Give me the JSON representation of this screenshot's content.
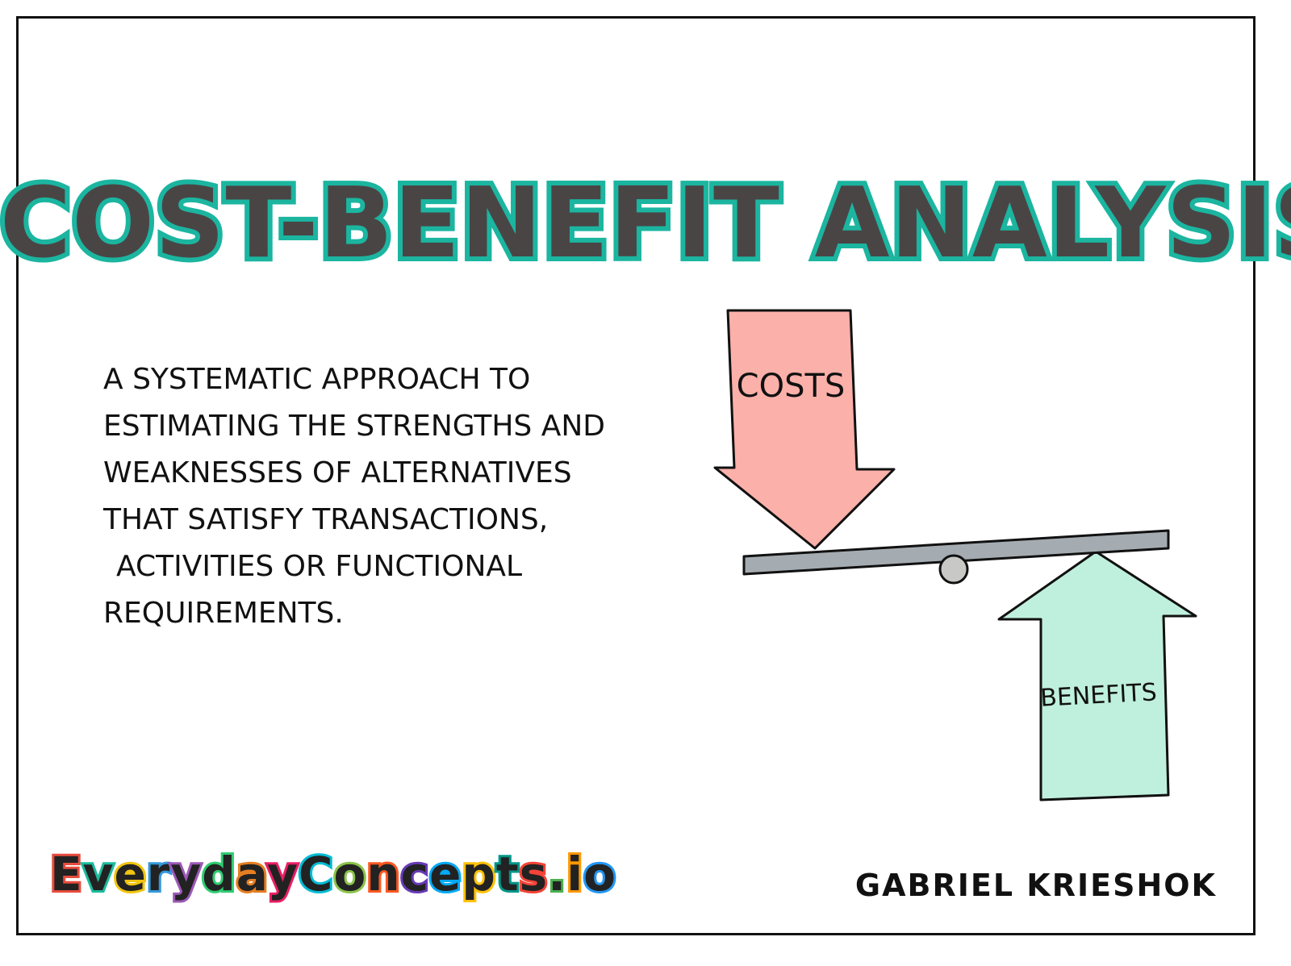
{
  "title": {
    "text": "COST-BENEFIT ANALYSIS",
    "fill_color": "#4a4545",
    "outline_color": "#1bb5a0"
  },
  "definition": {
    "lines": [
      "A systematic approach to",
      "estimating the strengths and",
      "weaknesses of alternatives",
      "that satisfy transactions,",
      "activities or functional",
      "requirements."
    ],
    "color": "#111111"
  },
  "diagram": {
    "costs_label": "COSTS",
    "benefits_label": "BENEFITS",
    "costs_color": "#fbb0a9",
    "benefits_color": "#bff0dd",
    "beam_color": "#a5acb1",
    "fulcrum_color": "#c8c8c6",
    "outline_color": "#111111"
  },
  "branding": {
    "text": "EverydayConcepts.io",
    "letter_colors": [
      "#e74c3c",
      "#1abc9c",
      "#f1c40f",
      "#3498db",
      "#9b59b6",
      "#2ecc71",
      "#e67e22",
      "#e91e63",
      "#00bcd4",
      "#8bc34a",
      "#ff5722",
      "#673ab7",
      "#03a9f4",
      "#ffc107",
      "#009688",
      "#f44336",
      "#4caf50",
      "#ff9800",
      "#2196f3"
    ]
  },
  "author": {
    "text": "Gabriel Krieshok"
  }
}
